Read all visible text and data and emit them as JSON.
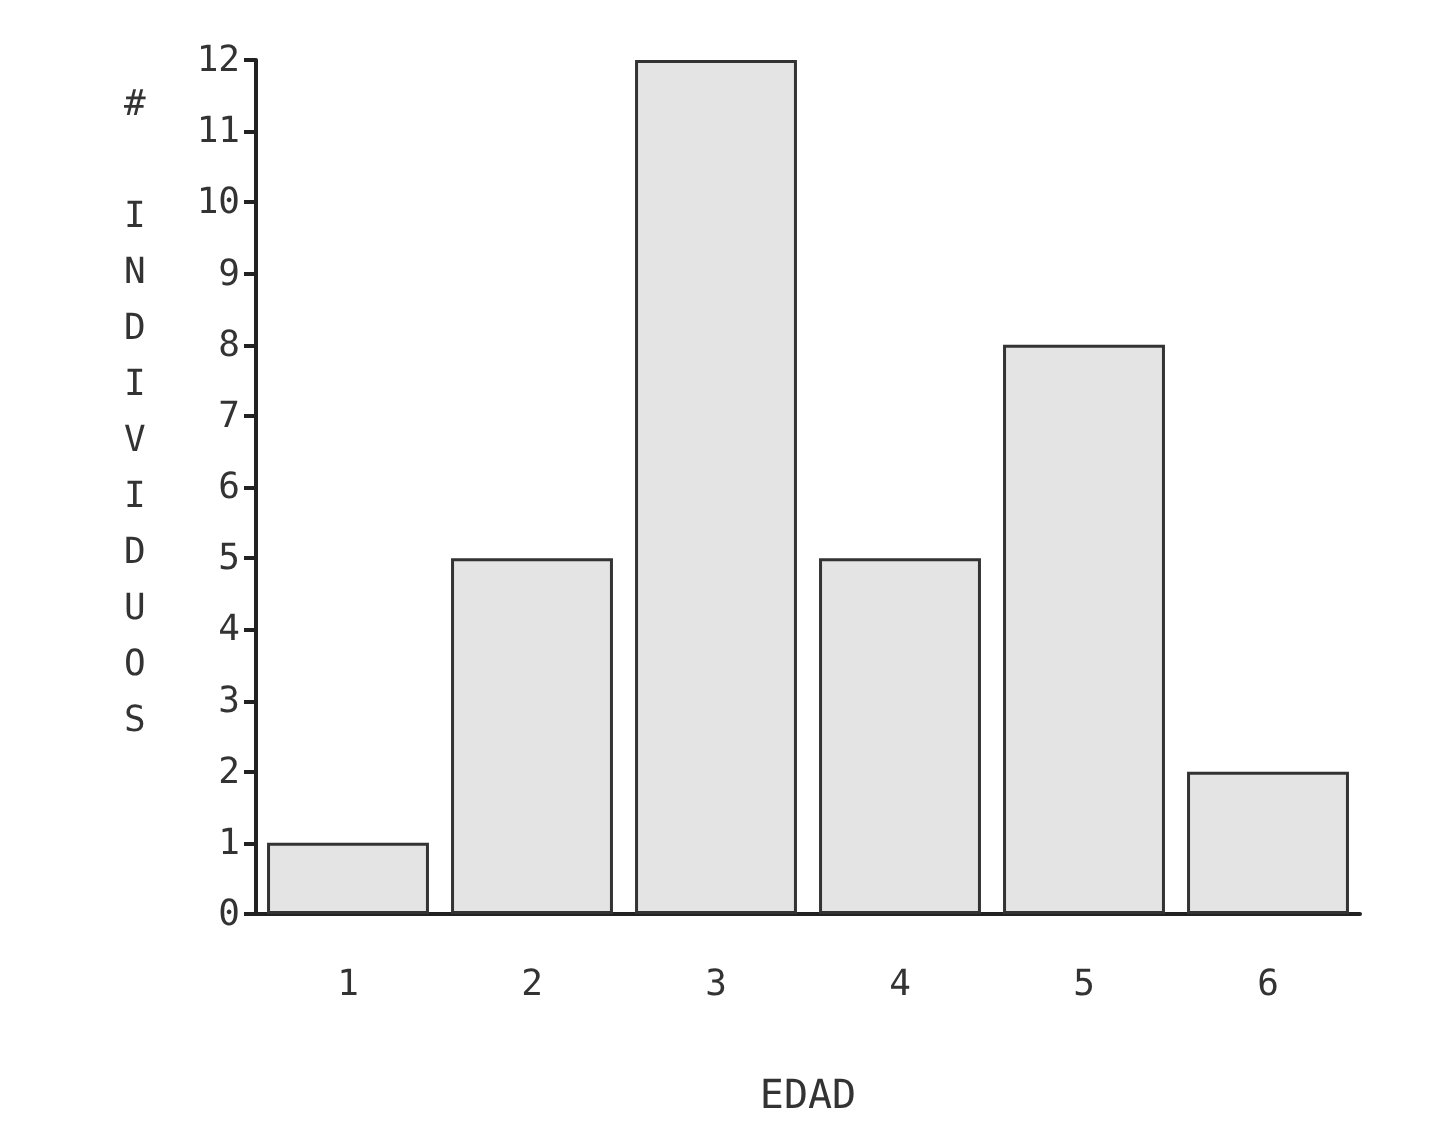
{
  "chart_data": {
    "type": "bar",
    "xlabel": "EDAD",
    "ylabel": "# INDIVIDUOS",
    "categories": [
      "1",
      "2",
      "3",
      "4",
      "5",
      "6"
    ],
    "values": [
      1,
      5,
      12,
      5,
      8,
      2
    ],
    "color": "#e4e4e4",
    "ylim": [
      0,
      12
    ],
    "yticks": [
      0,
      1,
      2,
      3,
      4,
      5,
      6,
      7,
      8,
      9,
      10,
      11,
      12
    ],
    "grid": false
  }
}
